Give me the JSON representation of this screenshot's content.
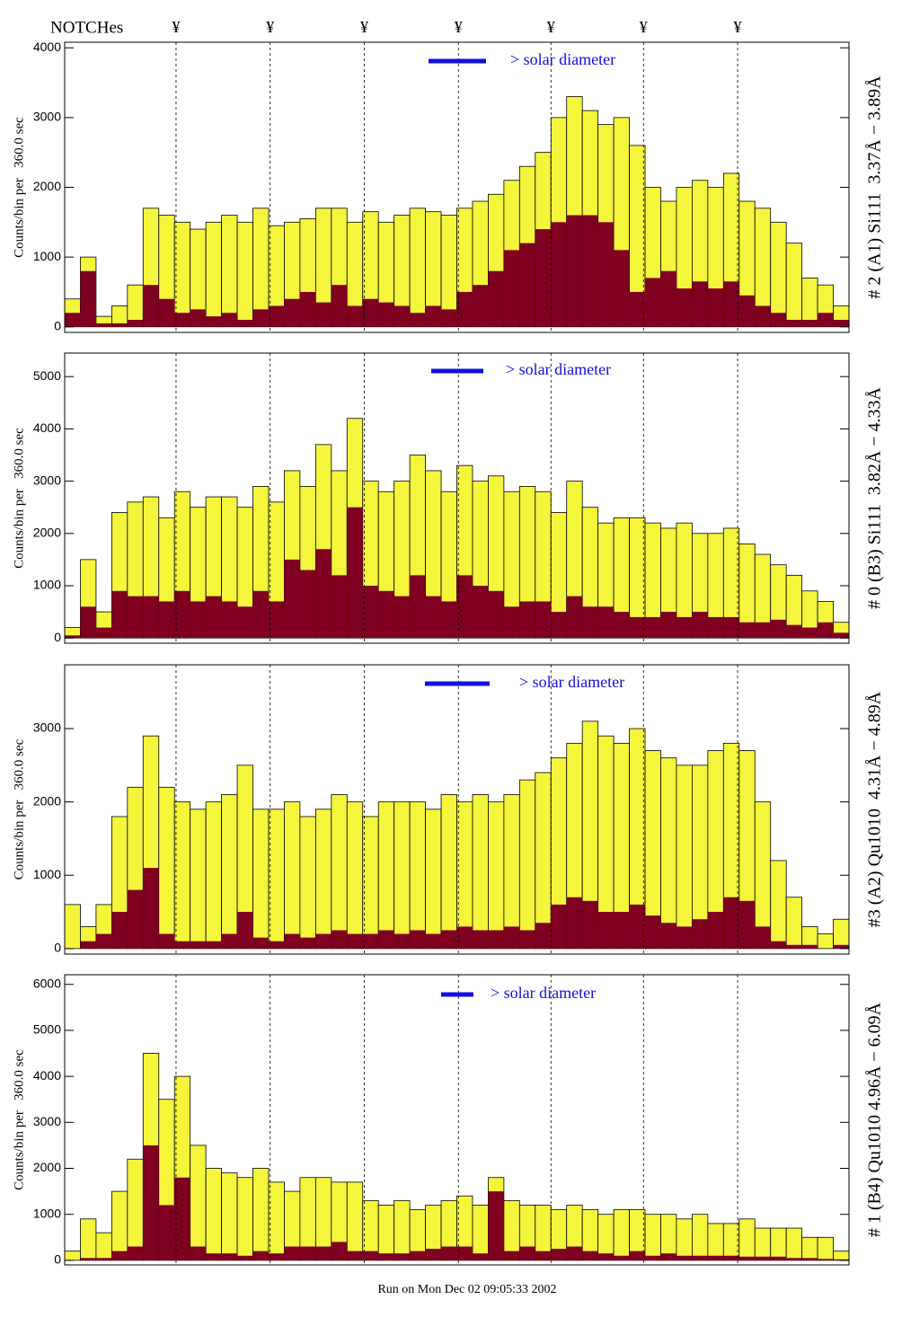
{
  "header": {
    "label": "NOTCHes",
    "marks": [
      "¥",
      "¥",
      "¥",
      "¥",
      "¥",
      "¥",
      "¥"
    ],
    "x": [
      7.1,
      13.1,
      19.1,
      25.1,
      31,
      36.9,
      42.9
    ]
  },
  "footer": "Run on Mon Dec 02 09:05:33 2002",
  "chart_data": [
    {
      "type": "histogram",
      "title": "# 2 (A1) Si111  3.37Å − 3.89Å",
      "ylabel": "Counts/bin per   360.0 sec",
      "annotation": "> solar diameter",
      "bins": [
        0,
        1,
        2,
        3,
        4,
        5,
        6,
        7,
        8,
        9,
        10,
        11,
        12,
        13,
        14,
        15,
        16,
        17,
        18,
        19,
        20,
        21,
        22,
        23,
        24,
        25,
        26,
        27,
        28,
        29,
        30,
        31,
        32,
        33,
        34,
        35,
        36,
        37,
        38,
        39,
        40,
        41,
        42,
        43,
        44,
        45,
        46,
        47,
        48,
        49,
        50
      ],
      "xlim": [
        0,
        50
      ],
      "ylim": [
        -80,
        4080
      ],
      "yticks": [
        0,
        1000,
        2000,
        3000,
        4000
      ],
      "series": [
        {
          "color": "#f5f53c",
          "values": [
            400,
            1000,
            150,
            300,
            600,
            1700,
            1600,
            1500,
            1400,
            1500,
            1600,
            1500,
            1700,
            1450,
            1500,
            1550,
            1700,
            1700,
            1500,
            1650,
            1500,
            1600,
            1700,
            1650,
            1600,
            1700,
            1800,
            1900,
            2100,
            2300,
            2500,
            3000,
            3300,
            3100,
            2900,
            3000,
            2600,
            2000,
            1800,
            2000,
            2100,
            2000,
            2200,
            1800,
            1700,
            1500,
            1200,
            700,
            600,
            300
          ]
        },
        {
          "color": "#800020",
          "values": [
            200,
            800,
            50,
            50,
            100,
            600,
            400,
            200,
            250,
            150,
            200,
            100,
            250,
            300,
            400,
            500,
            350,
            600,
            300,
            400,
            350,
            300,
            200,
            300,
            250,
            500,
            600,
            800,
            1100,
            1200,
            1400,
            1500,
            1600,
            1600,
            1500,
            1100,
            500,
            700,
            800,
            550,
            650,
            550,
            650,
            450,
            300,
            200,
            100,
            100,
            200,
            100
          ]
        }
      ]
    },
    {
      "type": "histogram",
      "title": "# 0 (B3) Si111  3.82Å − 4.33Å",
      "ylabel": "Counts/bin per   360.0 sec",
      "annotation": "> solar diameter",
      "bins": [
        0,
        1,
        2,
        3,
        4,
        5,
        6,
        7,
        8,
        9,
        10,
        11,
        12,
        13,
        14,
        15,
        16,
        17,
        18,
        19,
        20,
        21,
        22,
        23,
        24,
        25,
        26,
        27,
        28,
        29,
        30,
        31,
        32,
        33,
        34,
        35,
        36,
        37,
        38,
        39,
        40,
        41,
        42,
        43,
        44,
        45,
        46,
        47,
        48,
        49,
        50
      ],
      "xlim": [
        0,
        50
      ],
      "ylim": [
        -100,
        5450
      ],
      "yticks": [
        0,
        1000,
        2000,
        3000,
        4000,
        5000
      ],
      "series": [
        {
          "color": "#f5f53c",
          "values": [
            200,
            1500,
            500,
            2400,
            2600,
            2700,
            2300,
            2800,
            2500,
            2700,
            2700,
            2500,
            2900,
            2600,
            3200,
            2900,
            3700,
            3200,
            4200,
            3000,
            2800,
            3000,
            3500,
            3200,
            2800,
            3300,
            3000,
            3100,
            2800,
            2900,
            2800,
            2400,
            3000,
            2500,
            2200,
            2300,
            2300,
            2200,
            2100,
            2200,
            2000,
            2000,
            2100,
            1800,
            1600,
            1400,
            1200,
            900,
            700,
            300
          ]
        },
        {
          "color": "#800020",
          "values": [
            50,
            600,
            200,
            900,
            800,
            800,
            700,
            900,
            700,
            800,
            700,
            600,
            900,
            700,
            1500,
            1300,
            1700,
            1200,
            2500,
            1000,
            900,
            800,
            1200,
            800,
            700,
            1200,
            1000,
            900,
            600,
            700,
            700,
            500,
            800,
            600,
            600,
            500,
            400,
            400,
            500,
            400,
            500,
            400,
            400,
            300,
            300,
            350,
            250,
            200,
            300,
            100
          ]
        }
      ]
    },
    {
      "type": "histogram",
      "title": "#3 (A2) Qu1010  4.31Å − 4.89Å",
      "ylabel": "Counts/bin per   360.0 sec",
      "annotation": "> solar diameter",
      "bins": [
        0,
        1,
        2,
        3,
        4,
        5,
        6,
        7,
        8,
        9,
        10,
        11,
        12,
        13,
        14,
        15,
        16,
        17,
        18,
        19,
        20,
        21,
        22,
        23,
        24,
        25,
        26,
        27,
        28,
        29,
        30,
        31,
        32,
        33,
        34,
        35,
        36,
        37,
        38,
        39,
        40,
        41,
        42,
        43,
        44,
        45,
        46,
        47,
        48,
        49,
        50
      ],
      "xlim": [
        0,
        50
      ],
      "ylim": [
        -75,
        3870
      ],
      "yticks": [
        0,
        1000,
        2000,
        3000
      ],
      "series": [
        {
          "color": "#f5f53c",
          "values": [
            600,
            300,
            600,
            1800,
            2200,
            2900,
            2200,
            2000,
            1900,
            2000,
            2100,
            2500,
            1900,
            1900,
            2000,
            1800,
            1900,
            2100,
            2000,
            1800,
            2000,
            2000,
            2000,
            1900,
            2100,
            2000,
            2100,
            2000,
            2100,
            2300,
            2400,
            2600,
            2800,
            3100,
            2900,
            2800,
            3000,
            2700,
            2600,
            2500,
            2500,
            2700,
            2800,
            2700,
            2000,
            1200,
            700,
            300,
            200,
            400
          ]
        },
        {
          "color": "#800020",
          "values": [
            0,
            100,
            200,
            500,
            800,
            1100,
            200,
            100,
            100,
            100,
            200,
            500,
            150,
            100,
            200,
            150,
            200,
            250,
            200,
            200,
            250,
            200,
            250,
            200,
            250,
            300,
            250,
            250,
            300,
            250,
            350,
            600,
            700,
            650,
            500,
            500,
            600,
            450,
            350,
            300,
            400,
            500,
            700,
            650,
            300,
            100,
            50,
            50,
            0,
            50
          ]
        }
      ]
    },
    {
      "type": "histogram",
      "title": "# 1 (B4) Qu1010 4.96Å − 6.09Å",
      "ylabel": "Counts/bin per   360.0 sec",
      "annotation": "> solar diameter",
      "bins": [
        0,
        1,
        2,
        3,
        4,
        5,
        6,
        7,
        8,
        9,
        10,
        11,
        12,
        13,
        14,
        15,
        16,
        17,
        18,
        19,
        20,
        21,
        22,
        23,
        24,
        25,
        26,
        27,
        28,
        29,
        30,
        31,
        32,
        33,
        34,
        35,
        36,
        37,
        38,
        39,
        40,
        41,
        42,
        43,
        44,
        45,
        46,
        47,
        48,
        49,
        50
      ],
      "xlim": [
        0,
        50
      ],
      "ylim": [
        -100,
        6210
      ],
      "yticks": [
        0,
        1000,
        2000,
        3000,
        4000,
        5000,
        6000
      ],
      "series": [
        {
          "color": "#f5f53c",
          "values": [
            200,
            900,
            600,
            1500,
            2200,
            4500,
            3500,
            4000,
            2500,
            2000,
            1900,
            1800,
            2000,
            1700,
            1500,
            1800,
            1800,
            1700,
            1700,
            1300,
            1200,
            1300,
            1100,
            1200,
            1300,
            1400,
            1200,
            1800,
            1300,
            1200,
            1200,
            1100,
            1200,
            1100,
            1000,
            1100,
            1100,
            1000,
            1000,
            900,
            1000,
            800,
            800,
            900,
            700,
            700,
            700,
            500,
            500,
            200
          ]
        },
        {
          "color": "#800020",
          "values": [
            0,
            50,
            50,
            200,
            300,
            2500,
            1200,
            1800,
            300,
            150,
            150,
            100,
            200,
            150,
            300,
            300,
            300,
            400,
            200,
            200,
            150,
            150,
            200,
            250,
            300,
            300,
            150,
            1500,
            200,
            300,
            200,
            250,
            300,
            200,
            150,
            100,
            200,
            100,
            150,
            100,
            100,
            100,
            100,
            80,
            80,
            80,
            50,
            50,
            30,
            20
          ]
        }
      ]
    }
  ]
}
